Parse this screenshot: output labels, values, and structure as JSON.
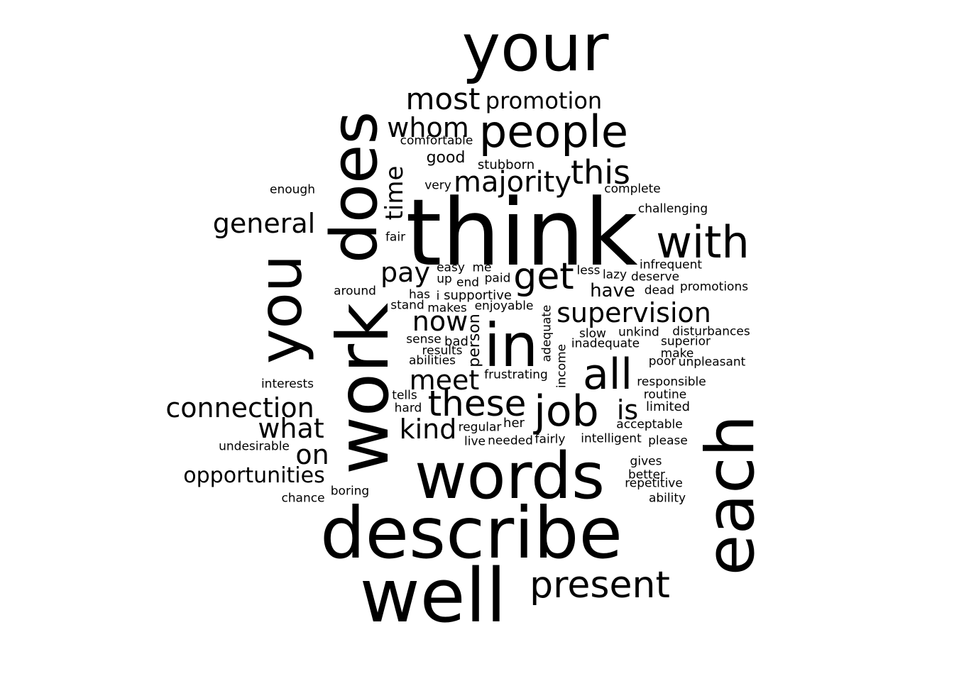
{
  "words": [
    "your",
    "think",
    "describe",
    "well",
    "words",
    "does",
    "work",
    "each",
    "you",
    "in",
    "people",
    "with",
    "these",
    "job",
    "all",
    "get",
    "most",
    "present",
    "majority",
    "this",
    "whom",
    "promotion",
    "supervision",
    "general",
    "connection",
    "meet",
    "now",
    "pay",
    "kind",
    "what",
    "is",
    "on",
    "opportunities",
    "time",
    "good",
    "comfortable",
    "stubborn",
    "very",
    "complete",
    "enough",
    "challenging",
    "fair",
    "infrequent",
    "easy",
    "me",
    "less",
    "lazy",
    "deserve",
    "up",
    "paid",
    "end",
    "promotions",
    "around",
    "has",
    "i",
    "supportive",
    "have",
    "dead",
    "stand",
    "makes",
    "enjoyable",
    "adequate",
    "slow",
    "unkind",
    "disturbances",
    "person",
    "sense",
    "bad",
    "inadequate",
    "superior",
    "results",
    "make",
    "abilities",
    "income",
    "poor",
    "unpleasant",
    "frustrating",
    "responsible",
    "interests",
    "tells",
    "routine",
    "hard",
    "limited",
    "regular",
    "her",
    "acceptable",
    "undesirable",
    "live",
    "needed",
    "fairly",
    "intelligent",
    "please",
    "gives",
    "better",
    "repetitive",
    "chance",
    "boring",
    "ability"
  ]
}
